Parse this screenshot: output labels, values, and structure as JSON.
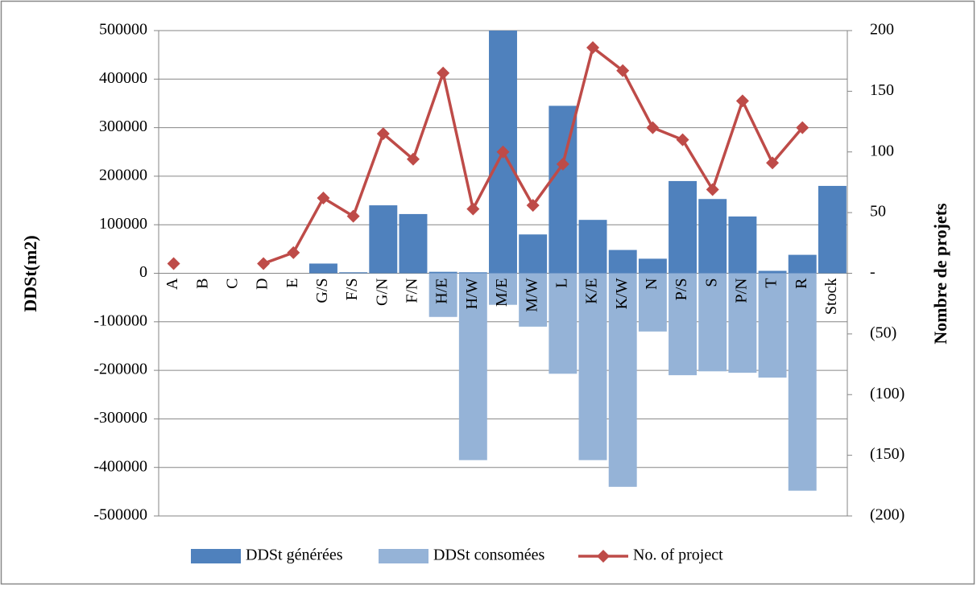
{
  "chart_data": {
    "type": "bar-line",
    "categories": [
      "A",
      "B",
      "C",
      "D",
      "E",
      "G/S",
      "F/S",
      "G/N",
      "F/N",
      "H/E",
      "H/W",
      "M/E",
      "M/W",
      "L",
      "K/E",
      "K/W",
      "N",
      "P/S",
      "S",
      "P/N",
      "T",
      "R",
      "Stock"
    ],
    "series": [
      {
        "name": "DDSt générées",
        "type": "bar",
        "color": "#4f81bd",
        "values": [
          0,
          0,
          0,
          0,
          0,
          20000,
          2000,
          140000,
          122000,
          3000,
          2000,
          500000,
          80000,
          345000,
          110000,
          48000,
          30000,
          190000,
          153000,
          117000,
          5000,
          38000,
          180000
        ]
      },
      {
        "name": "DDSt consomées",
        "type": "bar",
        "color": "#95b3d7",
        "values": [
          0,
          0,
          0,
          0,
          0,
          0,
          0,
          0,
          0,
          -90000,
          -385000,
          -65000,
          -110000,
          -207000,
          -385000,
          -440000,
          -120000,
          -210000,
          -202000,
          -205000,
          -215000,
          -448000,
          0
        ]
      },
      {
        "name": "No. of project",
        "type": "line",
        "axis": "y2",
        "color": "#be4b48",
        "values": [
          8,
          null,
          null,
          8,
          17,
          62,
          47,
          115,
          94,
          165,
          53,
          100,
          56,
          90,
          186,
          167,
          120,
          110,
          69,
          142,
          91,
          120,
          null
        ]
      }
    ],
    "ylabel": "DDSt(m2)",
    "y2label": "Nombre de projets",
    "ylim": [
      -500000,
      500000
    ],
    "yticks": [
      -500000,
      -400000,
      -300000,
      -200000,
      -100000,
      0,
      100000,
      200000,
      300000,
      400000,
      500000
    ],
    "y2lim": [
      -200,
      200
    ],
    "y2ticks": [
      {
        "value": -200,
        "label": "(200)"
      },
      {
        "value": -150,
        "label": "(150)"
      },
      {
        "value": -100,
        "label": "(100)"
      },
      {
        "value": -50,
        "label": "(50)"
      },
      {
        "value": 0,
        "label": "-"
      },
      50,
      100,
      150,
      200
    ],
    "grid": true,
    "legend": "bottom"
  }
}
